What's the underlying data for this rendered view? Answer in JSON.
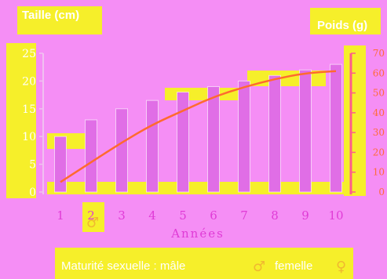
{
  "chart_data": {
    "type": "bar",
    "categories": [
      "1",
      "2",
      "3",
      "4",
      "5",
      "6",
      "7",
      "8",
      "9",
      "10"
    ],
    "series": [
      {
        "name": "Taille (cm)",
        "type": "bar",
        "axis": "left",
        "values": [
          10,
          13,
          15,
          16.5,
          18,
          19,
          20,
          21,
          22,
          23
        ]
      },
      {
        "name": "Poids (g)",
        "type": "line",
        "axis": "right",
        "values": [
          5,
          15,
          25,
          34,
          41,
          48,
          53,
          57,
          60,
          61
        ]
      }
    ],
    "xlabel": "Années",
    "ylabel_left": "Taille (cm)",
    "ylabel_right": "Poids (g)",
    "yticks_left": [
      "0",
      "5",
      "10",
      "15",
      "20",
      "25"
    ],
    "yticks_right": [
      "0",
      "10",
      "20",
      "30",
      "40",
      "50",
      "60",
      "70"
    ],
    "ylim_left": [
      0,
      25
    ],
    "ylim_right": [
      0,
      70
    ],
    "caption": "Maturité sexuelle : mâle",
    "caption_female": "femelle",
    "male_symbol": "♂",
    "female_symbol": "♀",
    "maturity_marker_year": "2",
    "colors": {
      "background": "#f58ef5",
      "bars": "#e06ee6",
      "line": "#ff6a2e",
      "highlight": "#f6ef2a",
      "left_axis": "#f0c0f0",
      "right_axis": "#ff5c8a"
    }
  }
}
